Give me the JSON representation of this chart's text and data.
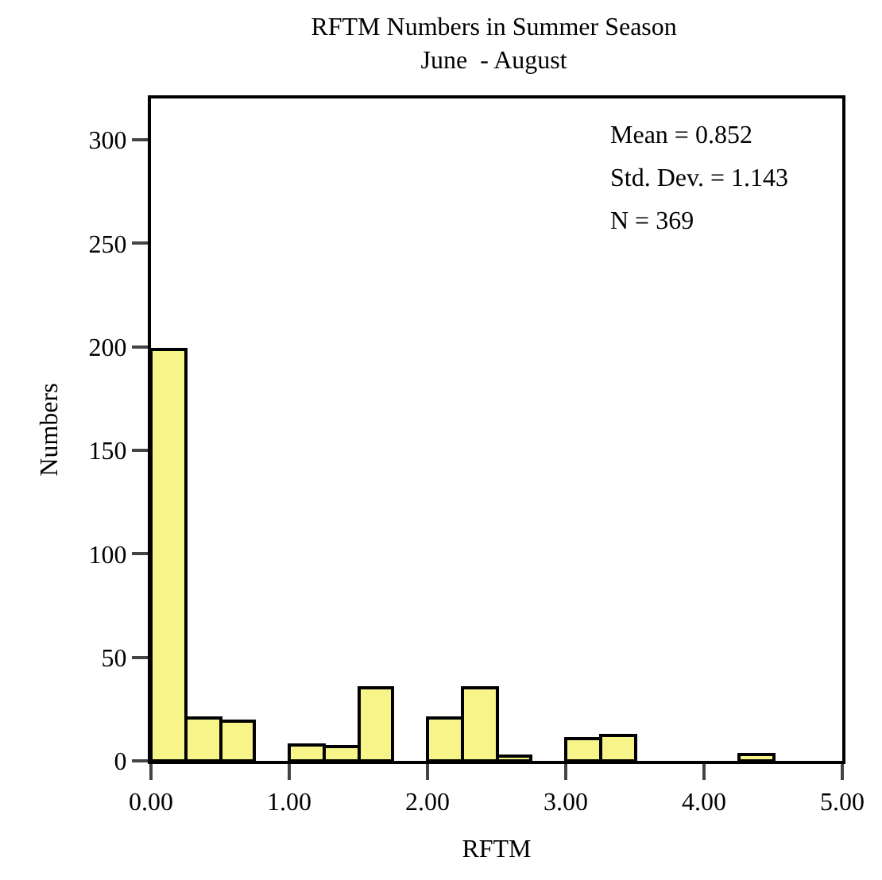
{
  "chart_data": {
    "type": "histogram",
    "title": "RFTM Numbers in Summer Season",
    "subtitle": "June  - August",
    "xlabel": "RFTM",
    "ylabel": "Numbers",
    "bins": [
      0,
      0.25,
      0.5,
      0.75,
      1.0,
      1.25,
      1.5,
      1.75,
      2.0,
      2.25,
      2.5,
      2.75,
      3.0,
      3.25,
      3.5,
      3.75,
      4.0,
      4.25,
      4.5,
      4.75,
      5.0
    ],
    "values": [
      199,
      21,
      19,
      0,
      8,
      7,
      35,
      0,
      21,
      35,
      2,
      0,
      11,
      12,
      null,
      0,
      0,
      3,
      0,
      0
    ],
    "color": "#f7f48a",
    "xlim": [
      0,
      5
    ],
    "xticks": [
      {
        "value": 0,
        "label": "0.00"
      },
      {
        "value": 1,
        "label": "1.00"
      },
      {
        "value": 2,
        "label": "2.00"
      },
      {
        "value": 3,
        "label": "3.00"
      },
      {
        "value": 4,
        "label": "4.00"
      },
      {
        "value": 5,
        "label": "5.00"
      }
    ],
    "ylim": [
      0,
      320
    ],
    "yticks": [
      0,
      50,
      100,
      150,
      200,
      250,
      300
    ],
    "annotations": [
      "Mean = 0.852",
      "Std. Dev. = 1.143",
      "N = 369"
    ]
  }
}
